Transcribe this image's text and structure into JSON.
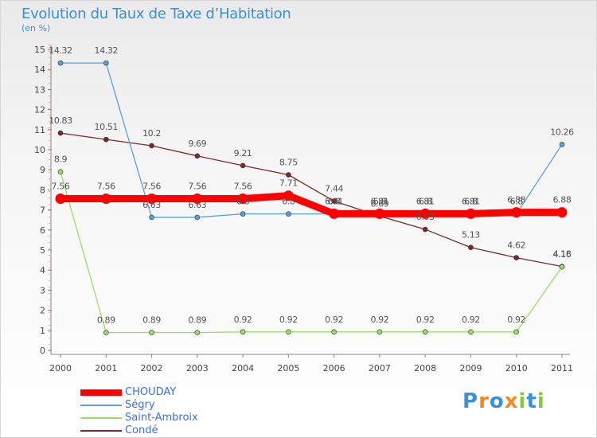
{
  "header": {
    "title": "Evolution du Taux de Taxe d’Habitation",
    "subtitle": "(en %)"
  },
  "chart_data": {
    "type": "line",
    "x": [
      "2000",
      "2001",
      "2002",
      "2003",
      "2004",
      "2005",
      "2006",
      "2007",
      "2008",
      "2009",
      "2010",
      "2011"
    ],
    "ylim": [
      0,
      15
    ],
    "yticks": [
      "0",
      "1",
      "2",
      "3",
      "4",
      "5",
      "6",
      "7",
      "8",
      "9",
      "10",
      "11",
      "12",
      "13",
      "14",
      "15"
    ],
    "grid": false,
    "legend_position": "bottom-left",
    "series": [
      {
        "name": "CHOUDAY",
        "color": "#ff0000",
        "values": [
          7.56,
          7.56,
          7.56,
          7.56,
          7.56,
          7.71,
          6.81,
          6.81,
          6.81,
          6.81,
          6.88,
          6.88
        ],
        "labels": [
          "7.56",
          "7.56",
          "7.56",
          "7.56",
          "7.56",
          "7.71",
          "6.81",
          "6.81",
          "6.81",
          "6.81",
          "6.88",
          "6.88"
        ]
      },
      {
        "name": "Ségry",
        "color": "#5aa0d8",
        "values": [
          14.32,
          14.32,
          6.63,
          6.63,
          6.8,
          6.8,
          6.8,
          6.8,
          6.8,
          6.8,
          6.8,
          10.26
        ],
        "labels": [
          "14.32",
          "14.32",
          "6.63",
          "6.63",
          "6.8",
          "6.8",
          "6.8",
          "6.8",
          "6.8",
          "6.8",
          "6.8",
          "10.26"
        ]
      },
      {
        "name": "Saint-Ambroix",
        "color": "#99dd66",
        "values": [
          8.9,
          0.89,
          0.89,
          0.89,
          0.92,
          0.92,
          0.92,
          0.92,
          0.92,
          0.92,
          0.92,
          4.16
        ],
        "labels": [
          "8.9",
          "0.89",
          "0.89",
          "0.89",
          "0.92",
          "0.92",
          "0.92",
          "0.92",
          "0.92",
          "0.92",
          "0.92",
          "4.16"
        ]
      },
      {
        "name": "Condé",
        "color": "#7a2a2a",
        "values": [
          10.83,
          10.51,
          10.2,
          9.69,
          9.21,
          8.75,
          7.44,
          6.69,
          6.03,
          5.13,
          4.62,
          4.18
        ],
        "labels": [
          "10.83",
          "10.51",
          "10.2",
          "9.69",
          "9.21",
          "8.75",
          "7.44",
          "6.69",
          "6.03",
          "5.13",
          "4.62",
          "4.18"
        ]
      }
    ]
  },
  "branding": {
    "logo_letters": [
      "P",
      "r",
      "o",
      "x",
      "i",
      "t",
      "i"
    ],
    "logo_colors": [
      "#3a8fd8",
      "#f08a1e",
      "#3a8fd8",
      "#f08a1e",
      "#8cc63f",
      "#3a8fd8",
      "#8cc63f"
    ]
  }
}
